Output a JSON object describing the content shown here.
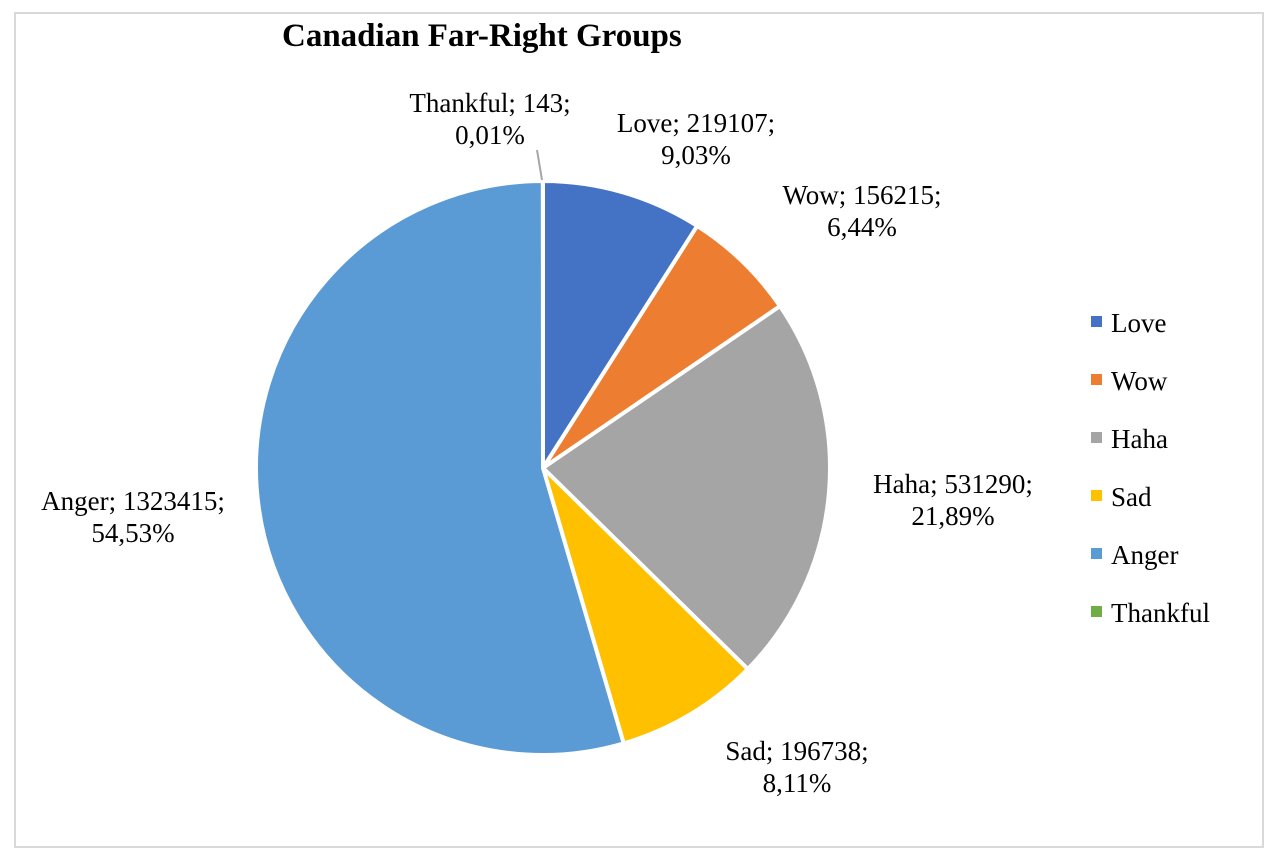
{
  "chart_data": {
    "type": "pie",
    "title": "Canadian Far-Right Groups",
    "slices": [
      {
        "name": "Love",
        "value": 219107,
        "percent": "9,03%",
        "color": "#4472c4",
        "label_line1": "Love; 219107;",
        "label_line2": "9,03%"
      },
      {
        "name": "Wow",
        "value": 156215,
        "percent": "6,44%",
        "color": "#ed7d31",
        "label_line1": "Wow; 156215;",
        "label_line2": "6,44%"
      },
      {
        "name": "Haha",
        "value": 531290,
        "percent": "21,89%",
        "color": "#a5a5a5",
        "label_line1": "Haha; 531290;",
        "label_line2": "21,89%"
      },
      {
        "name": "Sad",
        "value": 196738,
        "percent": "8,11%",
        "color": "#ffc000",
        "label_line1": "Sad; 196738;",
        "label_line2": "8,11%"
      },
      {
        "name": "Anger",
        "value": 1323415,
        "percent": "54,53%",
        "color": "#5b9bd5",
        "label_line1": "Anger; 1323415;",
        "label_line2": "54,53%"
      },
      {
        "name": "Thankful",
        "value": 143,
        "percent": "0,01%",
        "color": "#70ad47",
        "label_line1": "Thankful; 143;",
        "label_line2": "0,01%"
      }
    ],
    "legend": [
      "Love",
      "Wow",
      "Haha",
      "Sad",
      "Anger",
      "Thankful"
    ],
    "legend_position": "right"
  }
}
